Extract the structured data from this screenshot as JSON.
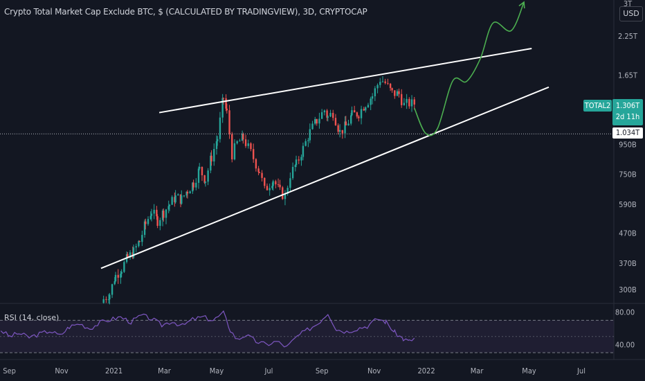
{
  "header": {
    "title": "Crypto Total Market Cap Exclude BTC, $ (CALCULATED BY TRADINGVIEW), 3D, CRYPTOCAP",
    "currency_button": "USD"
  },
  "price_tags": {
    "ticker": "TOTAL2",
    "last_price": "1.306T",
    "countdown": "2d 11h",
    "horizontal_line": "1.034T"
  },
  "rsi": {
    "label": "RSI (14, close)"
  },
  "colors": {
    "background": "#131722",
    "up": "#26a69a",
    "down": "#ef5350",
    "trendline": "#ffffff",
    "projection": "#4caf50",
    "rsi_line": "#7e57c2",
    "rsi_band": "#2a2440"
  },
  "chart_data": [
    {
      "type": "candlestick",
      "title": "Crypto Total Market Cap Exclude BTC, $ (CALCULATED BY TRADINGVIEW), 3D, CRYPTOCAP",
      "y_scale": "log",
      "ylim": [
        270,
        3000
      ],
      "y_unit": "B (USD)",
      "y_ticks": [
        {
          "label": "3T",
          "value": 3000
        },
        {
          "label": "2.25T",
          "value": 2250
        },
        {
          "label": "1.65T",
          "value": 1650
        },
        {
          "label": "1.306T",
          "value": 1306
        },
        {
          "label": "1.034T",
          "value": 1034
        },
        {
          "label": "950B",
          "value": 950
        },
        {
          "label": "750B",
          "value": 750
        },
        {
          "label": "590B",
          "value": 590
        },
        {
          "label": "470B",
          "value": 470
        },
        {
          "label": "370B",
          "value": 370
        },
        {
          "label": "300B",
          "value": 300
        }
      ],
      "x_ticks": [
        "Sep",
        "Nov",
        "2021",
        "Mar",
        "May",
        "Jul",
        "Sep",
        "Nov",
        "2022",
        "Mar",
        "May",
        "Jul"
      ],
      "xlim": [
        "2020-08-21",
        "2022-08-08"
      ],
      "close_series": [
        [
          "2020-12-20",
          278
        ],
        [
          "2020-12-27",
          290
        ],
        [
          "2021-01-03",
          335
        ],
        [
          "2021-01-10",
          355
        ],
        [
          "2021-01-17",
          385
        ],
        [
          "2021-01-24",
          405
        ],
        [
          "2021-01-31",
          440
        ],
        [
          "2021-02-07",
          505
        ],
        [
          "2021-02-14",
          560
        ],
        [
          "2021-02-21",
          520
        ],
        [
          "2021-02-28",
          555
        ],
        [
          "2021-03-07",
          590
        ],
        [
          "2021-03-14",
          625
        ],
        [
          "2021-03-21",
          615
        ],
        [
          "2021-03-28",
          660
        ],
        [
          "2021-04-04",
          700
        ],
        [
          "2021-04-11",
          780
        ],
        [
          "2021-04-18",
          720
        ],
        [
          "2021-04-25",
          860
        ],
        [
          "2021-05-02",
          1000
        ],
        [
          "2021-05-09",
          1380
        ],
        [
          "2021-05-13",
          1220
        ],
        [
          "2021-05-19",
          880
        ],
        [
          "2021-05-25",
          960
        ],
        [
          "2021-06-01",
          1000
        ],
        [
          "2021-06-10",
          890
        ],
        [
          "2021-06-20",
          770
        ],
        [
          "2021-06-26",
          660
        ],
        [
          "2021-07-06",
          720
        ],
        [
          "2021-07-14",
          650
        ],
        [
          "2021-07-20",
          630
        ],
        [
          "2021-07-26",
          750
        ],
        [
          "2021-08-02",
          810
        ],
        [
          "2021-08-10",
          920
        ],
        [
          "2021-08-18",
          1050
        ],
        [
          "2021-08-26",
          1150
        ],
        [
          "2021-09-04",
          1250
        ],
        [
          "2021-09-08",
          1180
        ],
        [
          "2021-09-14",
          1230
        ],
        [
          "2021-09-22",
          1050
        ],
        [
          "2021-09-29",
          1100
        ],
        [
          "2021-10-06",
          1200
        ],
        [
          "2021-10-14",
          1220
        ],
        [
          "2021-10-22",
          1320
        ],
        [
          "2021-10-30",
          1400
        ],
        [
          "2021-11-08",
          1600
        ],
        [
          "2021-11-14",
          1550
        ],
        [
          "2021-11-22",
          1430
        ],
        [
          "2021-11-30",
          1420
        ],
        [
          "2021-12-06",
          1300
        ],
        [
          "2021-12-12",
          1320
        ],
        [
          "2021-12-18",
          1306
        ]
      ],
      "horizontal_line": 1034,
      "trendlines": [
        {
          "name": "resistance",
          "from": [
            "2021-02-23",
            1225
          ],
          "to": [
            "2022-05-04",
            2040
          ]
        },
        {
          "name": "support",
          "from": [
            "2020-12-17",
            355
          ],
          "to": [
            "2022-05-24",
            1500
          ]
        }
      ],
      "projection": [
        [
          "2021-12-18",
          1270
        ],
        [
          "2021-12-31",
          1040
        ],
        [
          "2022-01-14",
          1080
        ],
        [
          "2022-02-01",
          1580
        ],
        [
          "2022-02-17",
          1570
        ],
        [
          "2022-03-05",
          1880
        ],
        [
          "2022-03-20",
          2500
        ],
        [
          "2022-04-10",
          2350
        ],
        [
          "2022-04-25",
          2950
        ]
      ]
    },
    {
      "type": "line",
      "title": "RSI (14, close)",
      "ylim": [
        25,
        90
      ],
      "y_ticks": [
        80.0,
        40.0
      ],
      "y_tick_labels": [
        "80.00",
        "40.00"
      ],
      "bands": [
        70,
        30
      ],
      "series": [
        {
          "values": [
            [
              "2020-08-22",
              58
            ],
            [
              "2020-09-01",
              50
            ],
            [
              "2020-09-12",
              54
            ],
            [
              "2020-09-24",
              49
            ],
            [
              "2020-10-06",
              53
            ],
            [
              "2020-10-18",
              57
            ],
            [
              "2020-10-30",
              51
            ],
            [
              "2020-11-10",
              62
            ],
            [
              "2020-11-22",
              66
            ],
            [
              "2020-12-04",
              60
            ],
            [
              "2020-12-16",
              67
            ],
            [
              "2020-12-28",
              71
            ],
            [
              "2021-01-09",
              74
            ],
            [
              "2021-01-21",
              68
            ],
            [
              "2021-02-02",
              76
            ],
            [
              "2021-02-14",
              72
            ],
            [
              "2021-02-26",
              64
            ],
            [
              "2021-03-10",
              69
            ],
            [
              "2021-03-22",
              63
            ],
            [
              "2021-04-03",
              71
            ],
            [
              "2021-04-15",
              74
            ],
            [
              "2021-04-27",
              70
            ],
            [
              "2021-05-09",
              79
            ],
            [
              "2021-05-17",
              58
            ],
            [
              "2021-05-25",
              46
            ],
            [
              "2021-06-04",
              52
            ],
            [
              "2021-06-16",
              44
            ],
            [
              "2021-06-28",
              40
            ],
            [
              "2021-07-10",
              44
            ],
            [
              "2021-07-22",
              37
            ],
            [
              "2021-08-03",
              50
            ],
            [
              "2021-08-15",
              58
            ],
            [
              "2021-08-27",
              66
            ],
            [
              "2021-09-08",
              79
            ],
            [
              "2021-09-18",
              59
            ],
            [
              "2021-09-30",
              56
            ],
            [
              "2021-10-12",
              60
            ],
            [
              "2021-10-24",
              63
            ],
            [
              "2021-11-05",
              72
            ],
            [
              "2021-11-15",
              68
            ],
            [
              "2021-11-25",
              55
            ],
            [
              "2021-12-05",
              47
            ],
            [
              "2021-12-12",
              44
            ],
            [
              "2021-12-18",
              48
            ]
          ]
        }
      ]
    }
  ]
}
